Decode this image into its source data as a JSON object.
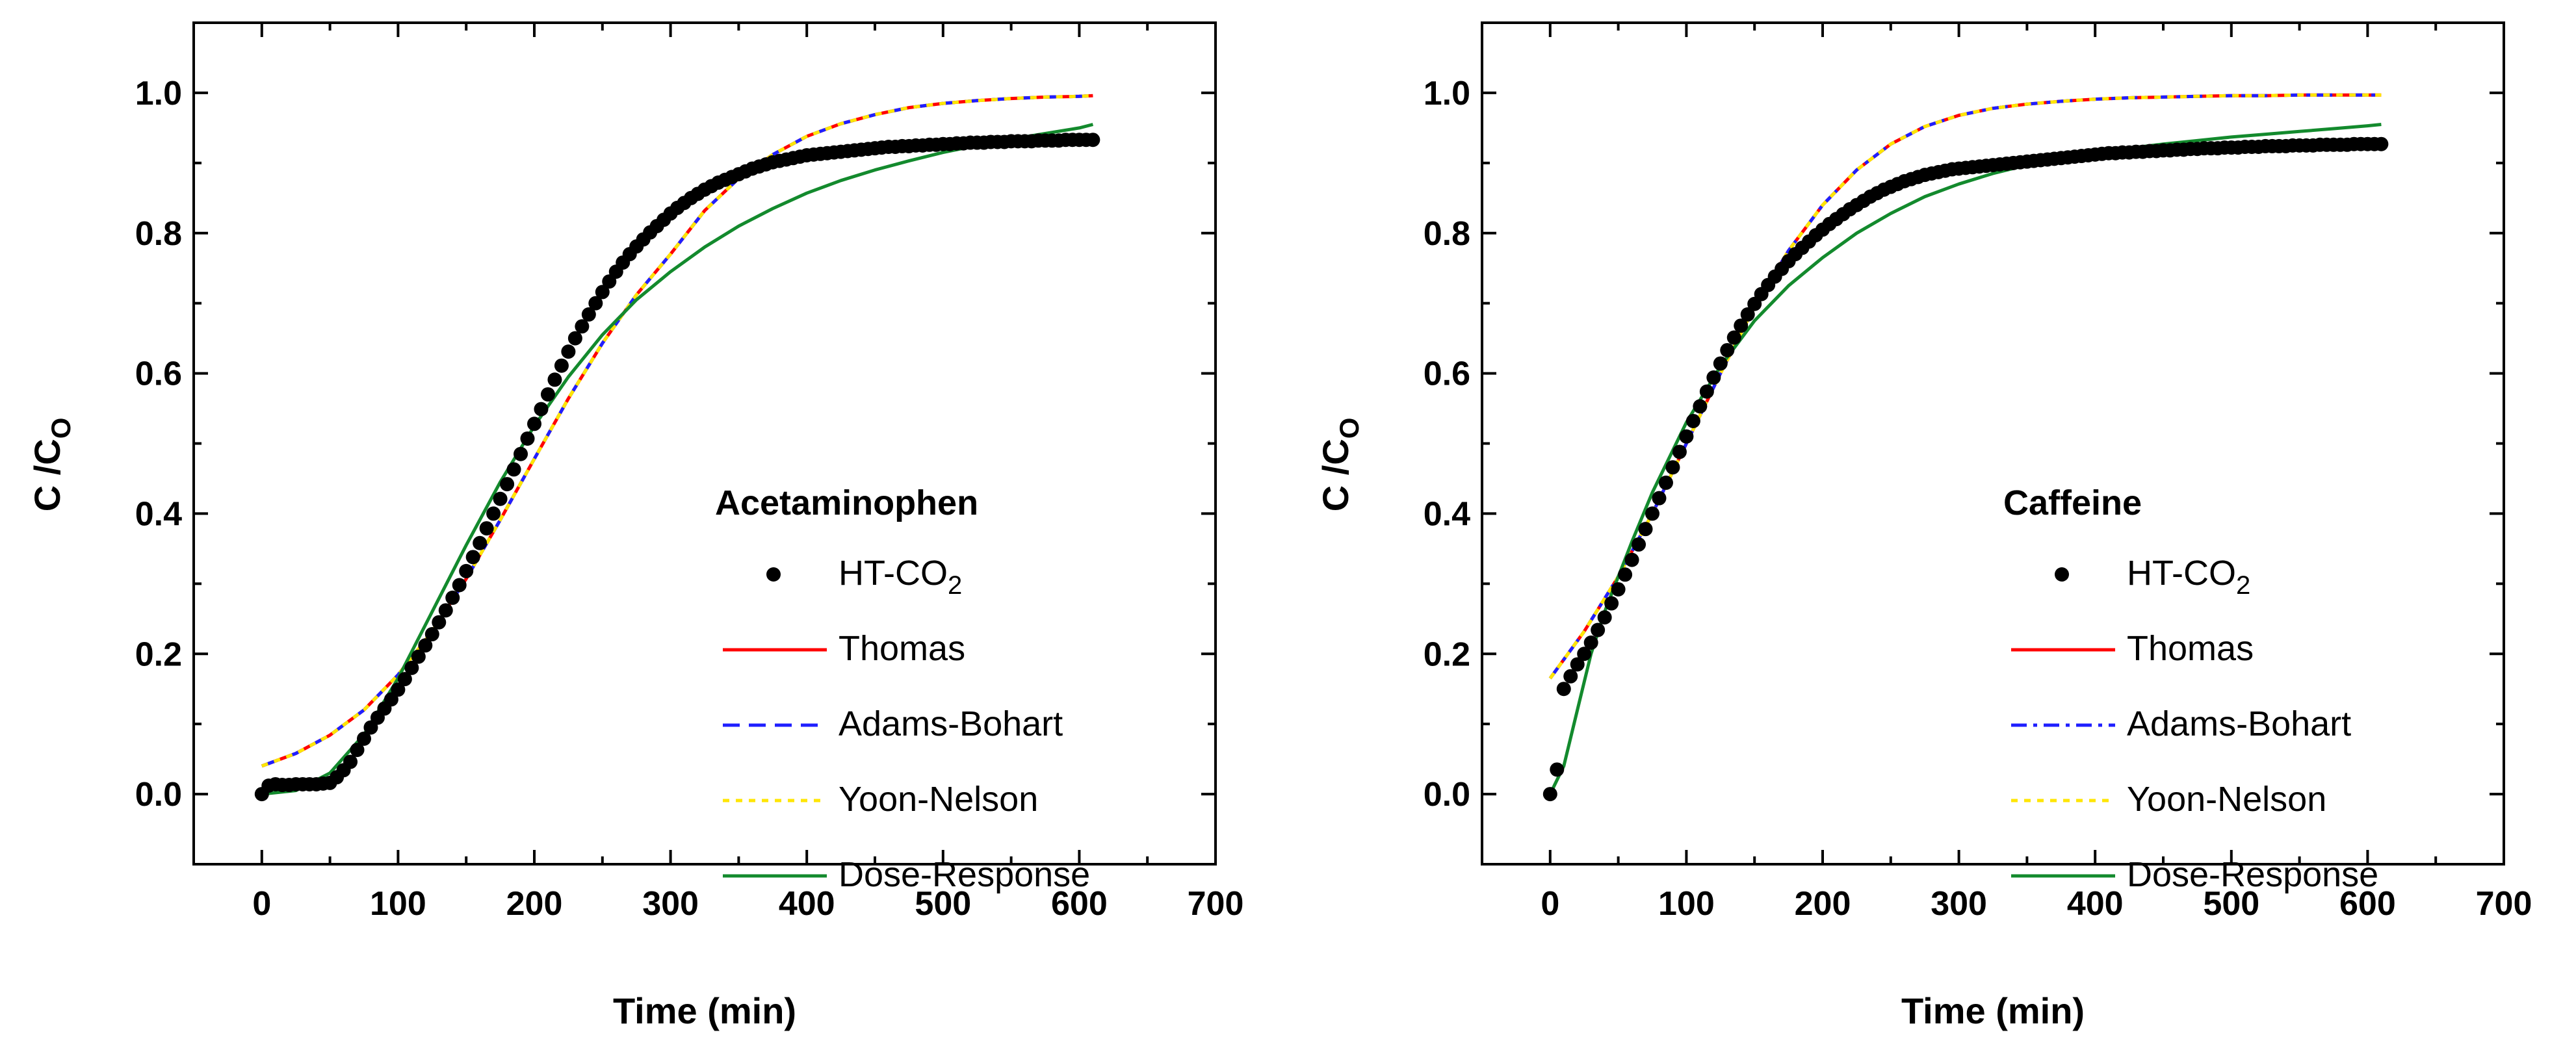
{
  "chart_data": [
    {
      "type": "line",
      "legend_title": "Acetaminophen",
      "xlabel": "Time (min)",
      "ylabel": "C /Co",
      "ylabel_main": "C /C",
      "ylabel_sub": "O",
      "xlim": [
        -50,
        700
      ],
      "ylim": [
        -0.1,
        1.1
      ],
      "xticks": [
        0,
        100,
        200,
        300,
        400,
        500,
        600,
        700
      ],
      "xtick_labels": [
        "0",
        "100",
        "200",
        "300",
        "400",
        "500",
        "600",
        "700"
      ],
      "yticks": [
        0.0,
        0.2,
        0.4,
        0.6,
        0.8,
        1.0
      ],
      "ytick_labels": [
        "0.0",
        "0.2",
        "0.4",
        "0.6",
        "0.8",
        "1.0"
      ],
      "legend_position": "bottom-right",
      "scatter": {
        "name": "HT-CO2",
        "label_main": "HT-CO",
        "label_sub": "2",
        "color": "#000000",
        "x": [
          0,
          5,
          10,
          15,
          20,
          25,
          30,
          35,
          40,
          45,
          50,
          55,
          60,
          65,
          70,
          75,
          80,
          85,
          90,
          95,
          100,
          105,
          110,
          115,
          120,
          125,
          130,
          135,
          140,
          145,
          150,
          155,
          160,
          165,
          170,
          175,
          180,
          185,
          190,
          195,
          200,
          205,
          210,
          215,
          220,
          225,
          230,
          235,
          240,
          245,
          250,
          255,
          260,
          265,
          270,
          275,
          280,
          285,
          290,
          295,
          300,
          305,
          310,
          315,
          320,
          325,
          330,
          335,
          340,
          345,
          350,
          355,
          360,
          365,
          370,
          375,
          380,
          385,
          390,
          395,
          400,
          405,
          410,
          415,
          420,
          425,
          430,
          435,
          440,
          445,
          450,
          455,
          460,
          465,
          470,
          475,
          480,
          485,
          490,
          495,
          500,
          505,
          510,
          515,
          520,
          525,
          530,
          535,
          540,
          545,
          550,
          555,
          560,
          565,
          570,
          575,
          580,
          585,
          590,
          595,
          600,
          605,
          610
        ],
        "y": [
          0.0,
          0.012,
          0.014,
          0.013,
          0.013,
          0.014,
          0.014,
          0.014,
          0.014,
          0.015,
          0.016,
          0.024,
          0.034,
          0.046,
          0.063,
          0.079,
          0.095,
          0.109,
          0.122,
          0.135,
          0.149,
          0.164,
          0.18,
          0.196,
          0.212,
          0.228,
          0.245,
          0.262,
          0.28,
          0.298,
          0.318,
          0.338,
          0.358,
          0.379,
          0.4,
          0.421,
          0.442,
          0.463,
          0.485,
          0.507,
          0.528,
          0.549,
          0.57,
          0.591,
          0.611,
          0.631,
          0.65,
          0.667,
          0.684,
          0.7,
          0.716,
          0.731,
          0.745,
          0.758,
          0.77,
          0.781,
          0.791,
          0.801,
          0.81,
          0.819,
          0.828,
          0.836,
          0.843,
          0.85,
          0.856,
          0.862,
          0.867,
          0.872,
          0.876,
          0.88,
          0.884,
          0.888,
          0.892,
          0.895,
          0.898,
          0.901,
          0.903,
          0.905,
          0.907,
          0.909,
          0.911,
          0.912,
          0.913,
          0.914,
          0.915,
          0.916,
          0.917,
          0.918,
          0.919,
          0.92,
          0.921,
          0.922,
          0.923,
          0.923,
          0.924,
          0.924,
          0.925,
          0.925,
          0.926,
          0.926,
          0.927,
          0.927,
          0.928,
          0.928,
          0.929,
          0.929,
          0.929,
          0.93,
          0.93,
          0.93,
          0.931,
          0.931,
          0.931,
          0.931,
          0.932,
          0.932,
          0.932,
          0.932,
          0.933,
          0.933,
          0.933,
          0.933,
          0.933
        ]
      },
      "series": [
        {
          "name": "Thomas",
          "color": "#ff0000",
          "style": "solid",
          "x": [
            0,
            25,
            50,
            75,
            100,
            125,
            150,
            175,
            200,
            225,
            250,
            275,
            300,
            325,
            350,
            375,
            400,
            425,
            450,
            475,
            500,
            525,
            550,
            575,
            600,
            610
          ],
          "y": [
            0.04,
            0.058,
            0.084,
            0.12,
            0.17,
            0.232,
            0.307,
            0.391,
            0.478,
            0.564,
            0.643,
            0.712,
            0.77,
            0.832,
            0.878,
            0.912,
            0.938,
            0.956,
            0.969,
            0.979,
            0.985,
            0.989,
            0.992,
            0.994,
            0.995,
            0.996
          ]
        },
        {
          "name": "Adams-Bohart",
          "color": "#1f1fff",
          "style": "dashed",
          "x": [
            0,
            25,
            50,
            75,
            100,
            125,
            150,
            175,
            200,
            225,
            250,
            275,
            300,
            325,
            350,
            375,
            400,
            425,
            450,
            475,
            500,
            525,
            550,
            575,
            600,
            610
          ],
          "y": [
            0.04,
            0.058,
            0.084,
            0.12,
            0.17,
            0.232,
            0.307,
            0.391,
            0.478,
            0.564,
            0.643,
            0.712,
            0.77,
            0.832,
            0.878,
            0.912,
            0.938,
            0.956,
            0.969,
            0.979,
            0.985,
            0.989,
            0.992,
            0.994,
            0.995,
            0.996
          ]
        },
        {
          "name": "Yoon-Nelson",
          "color": "#ffe600",
          "style": "dotted",
          "x": [
            0,
            25,
            50,
            75,
            100,
            125,
            150,
            175,
            200,
            225,
            250,
            275,
            300,
            325,
            350,
            375,
            400,
            425,
            450,
            475,
            500,
            525,
            550,
            575,
            600,
            610
          ],
          "y": [
            0.04,
            0.058,
            0.084,
            0.12,
            0.17,
            0.232,
            0.307,
            0.391,
            0.478,
            0.564,
            0.643,
            0.712,
            0.77,
            0.832,
            0.878,
            0.912,
            0.938,
            0.956,
            0.969,
            0.979,
            0.985,
            0.989,
            0.992,
            0.994,
            0.995,
            0.996
          ]
        },
        {
          "name": "Dose-Response",
          "color": "#138a2d",
          "style": "solid",
          "x": [
            0,
            25,
            50,
            75,
            100,
            125,
            150,
            175,
            200,
            225,
            250,
            275,
            300,
            325,
            350,
            375,
            400,
            425,
            450,
            475,
            500,
            525,
            550,
            575,
            600,
            610
          ],
          "y": [
            0.0,
            0.005,
            0.03,
            0.085,
            0.165,
            0.26,
            0.355,
            0.445,
            0.525,
            0.595,
            0.655,
            0.705,
            0.745,
            0.78,
            0.81,
            0.835,
            0.857,
            0.875,
            0.89,
            0.903,
            0.915,
            0.925,
            0.934,
            0.942,
            0.95,
            0.955
          ]
        }
      ]
    },
    {
      "type": "line",
      "legend_title": "Caffeine",
      "xlabel": "Time (min)",
      "ylabel": "C /Co",
      "ylabel_main": "C /C",
      "ylabel_sub": "O",
      "xlim": [
        -50,
        700
      ],
      "ylim": [
        -0.1,
        1.1
      ],
      "xticks": [
        0,
        100,
        200,
        300,
        400,
        500,
        600,
        700
      ],
      "xtick_labels": [
        "0",
        "100",
        "200",
        "300",
        "400",
        "500",
        "600",
        "700"
      ],
      "yticks": [
        0.0,
        0.2,
        0.4,
        0.6,
        0.8,
        1.0
      ],
      "ytick_labels": [
        "0.0",
        "0.2",
        "0.4",
        "0.6",
        "0.8",
        "1.0"
      ],
      "legend_position": "bottom-right",
      "scatter": {
        "name": "HT-CO2",
        "label_main": "HT-CO",
        "label_sub": "2",
        "color": "#000000",
        "x": [
          0,
          5,
          10,
          15,
          20,
          25,
          30,
          35,
          40,
          45,
          50,
          55,
          60,
          65,
          70,
          75,
          80,
          85,
          90,
          95,
          100,
          105,
          110,
          115,
          120,
          125,
          130,
          135,
          140,
          145,
          150,
          155,
          160,
          165,
          170,
          175,
          180,
          185,
          190,
          195,
          200,
          205,
          210,
          215,
          220,
          225,
          230,
          235,
          240,
          245,
          250,
          255,
          260,
          265,
          270,
          275,
          280,
          285,
          290,
          295,
          300,
          305,
          310,
          315,
          320,
          325,
          330,
          335,
          340,
          345,
          350,
          355,
          360,
          365,
          370,
          375,
          380,
          385,
          390,
          395,
          400,
          405,
          410,
          415,
          420,
          425,
          430,
          435,
          440,
          445,
          450,
          455,
          460,
          465,
          470,
          475,
          480,
          485,
          490,
          495,
          500,
          505,
          510,
          515,
          520,
          525,
          530,
          535,
          540,
          545,
          550,
          555,
          560,
          565,
          570,
          575,
          580,
          585,
          590,
          595,
          600,
          605,
          610
        ],
        "y": [
          0.0,
          0.035,
          0.15,
          0.168,
          0.185,
          0.2,
          0.216,
          0.234,
          0.252,
          0.272,
          0.292,
          0.313,
          0.334,
          0.356,
          0.378,
          0.4,
          0.422,
          0.444,
          0.466,
          0.488,
          0.51,
          0.532,
          0.553,
          0.574,
          0.594,
          0.614,
          0.633,
          0.651,
          0.668,
          0.684,
          0.699,
          0.713,
          0.726,
          0.738,
          0.749,
          0.76,
          0.77,
          0.779,
          0.788,
          0.797,
          0.805,
          0.813,
          0.82,
          0.827,
          0.834,
          0.84,
          0.846,
          0.852,
          0.857,
          0.862,
          0.866,
          0.87,
          0.874,
          0.877,
          0.88,
          0.883,
          0.885,
          0.887,
          0.889,
          0.891,
          0.892,
          0.893,
          0.894,
          0.895,
          0.896,
          0.897,
          0.898,
          0.899,
          0.9,
          0.901,
          0.902,
          0.903,
          0.904,
          0.905,
          0.906,
          0.907,
          0.908,
          0.909,
          0.91,
          0.911,
          0.912,
          0.913,
          0.914,
          0.914,
          0.915,
          0.915,
          0.916,
          0.916,
          0.917,
          0.917,
          0.918,
          0.918,
          0.919,
          0.919,
          0.92,
          0.92,
          0.921,
          0.921,
          0.921,
          0.922,
          0.922,
          0.922,
          0.923,
          0.923,
          0.923,
          0.924,
          0.924,
          0.924,
          0.924,
          0.925,
          0.925,
          0.925,
          0.925,
          0.926,
          0.926,
          0.926,
          0.926,
          0.926,
          0.927,
          0.927,
          0.927,
          0.927,
          0.927
        ]
      },
      "series": [
        {
          "name": "Thomas",
          "color": "#ff0000",
          "style": "solid",
          "x": [
            0,
            25,
            50,
            75,
            100,
            125,
            150,
            175,
            200,
            225,
            250,
            275,
            300,
            325,
            350,
            375,
            400,
            425,
            450,
            475,
            500,
            525,
            550,
            575,
            600,
            610
          ],
          "y": [
            0.165,
            0.232,
            0.31,
            0.4,
            0.5,
            0.6,
            0.695,
            0.775,
            0.84,
            0.89,
            0.927,
            0.952,
            0.968,
            0.978,
            0.984,
            0.988,
            0.991,
            0.993,
            0.994,
            0.995,
            0.996,
            0.996,
            0.997,
            0.997,
            0.997,
            0.997
          ]
        },
        {
          "name": "Adams-Bohart",
          "color": "#1f1fff",
          "style": "dashdot",
          "x": [
            0,
            25,
            50,
            75,
            100,
            125,
            150,
            175,
            200,
            225,
            250,
            275,
            300,
            325,
            350,
            375,
            400,
            425,
            450,
            475,
            500,
            525,
            550,
            575,
            600,
            610
          ],
          "y": [
            0.165,
            0.232,
            0.31,
            0.4,
            0.5,
            0.6,
            0.695,
            0.775,
            0.84,
            0.89,
            0.927,
            0.952,
            0.968,
            0.978,
            0.984,
            0.988,
            0.991,
            0.993,
            0.994,
            0.995,
            0.996,
            0.996,
            0.997,
            0.997,
            0.997,
            0.997
          ]
        },
        {
          "name": "Yoon-Nelson",
          "color": "#ffe600",
          "style": "dotted",
          "x": [
            0,
            25,
            50,
            75,
            100,
            125,
            150,
            175,
            200,
            225,
            250,
            275,
            300,
            325,
            350,
            375,
            400,
            425,
            450,
            475,
            500,
            525,
            550,
            575,
            600,
            610
          ],
          "y": [
            0.165,
            0.232,
            0.31,
            0.4,
            0.5,
            0.6,
            0.695,
            0.775,
            0.84,
            0.89,
            0.927,
            0.952,
            0.968,
            0.978,
            0.984,
            0.988,
            0.991,
            0.993,
            0.994,
            0.995,
            0.996,
            0.996,
            0.997,
            0.997,
            0.997,
            0.997
          ]
        },
        {
          "name": "Dose-Response",
          "color": "#138a2d",
          "style": "solid",
          "x": [
            0,
            10,
            20,
            30,
            40,
            50,
            60,
            75,
            100,
            125,
            150,
            175,
            200,
            225,
            250,
            275,
            300,
            325,
            350,
            375,
            400,
            425,
            450,
            475,
            500,
            525,
            550,
            575,
            600,
            610
          ],
          "y": [
            0.0,
            0.04,
            0.12,
            0.2,
            0.26,
            0.31,
            0.36,
            0.43,
            0.53,
            0.61,
            0.675,
            0.725,
            0.765,
            0.8,
            0.828,
            0.852,
            0.87,
            0.885,
            0.897,
            0.907,
            0.915,
            0.921,
            0.927,
            0.932,
            0.937,
            0.941,
            0.945,
            0.949,
            0.953,
            0.955
          ]
        }
      ]
    }
  ]
}
